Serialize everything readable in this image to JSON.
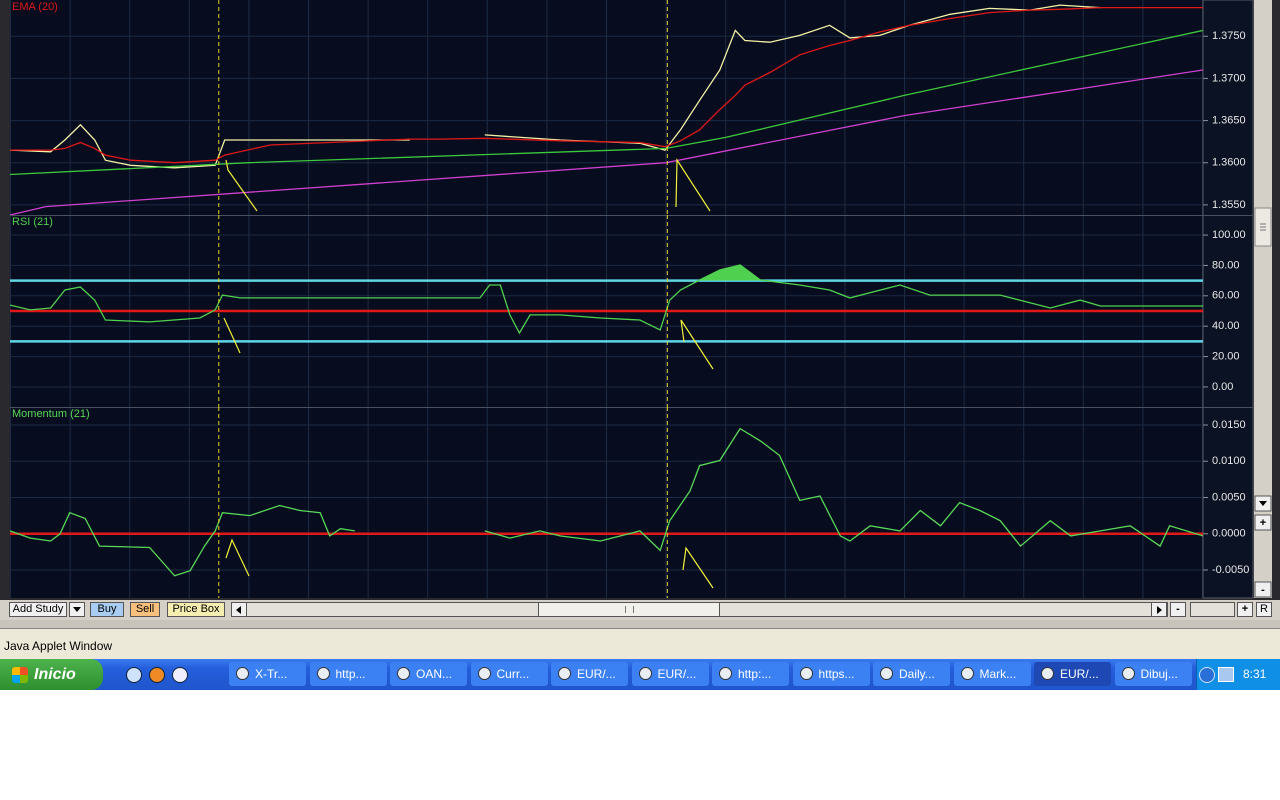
{
  "chart_data": [
    {
      "type": "line",
      "xlim": [
        0,
        100
      ],
      "ylim": [
        1.3538,
        1.3793
      ],
      "yticks": [
        {
          "value": 1.355,
          "label": "1.3550"
        },
        {
          "value": 1.36,
          "label": "1.3600"
        },
        {
          "value": 1.365,
          "label": "1.3650"
        },
        {
          "value": 1.37,
          "label": "1.3700"
        },
        {
          "value": 1.375,
          "label": "1.3750"
        }
      ],
      "grid": true,
      "x_markers": [
        17.5,
        55.1
      ],
      "series": [
        {
          "color": "#f4f1a6",
          "x": [
            0,
            3.4,
            4.6,
            5.9,
            7.1,
            8.0,
            10.1,
            13.8,
            17.2,
            18.0,
            21.8,
            33.5,
            36.0,
            39.8,
            46.1,
            52.8,
            54.9,
            56.2,
            57.8,
            59.5,
            60.8,
            61.6,
            63.7,
            66.2,
            68.7,
            70.4,
            72.9,
            75.4,
            78.8,
            82.1,
            85.5,
            88.0,
            91.4
          ],
          "values": [
            1.3615,
            1.3613,
            1.3627,
            1.3645,
            1.3627,
            1.3603,
            1.3597,
            1.3594,
            1.3597,
            1.3627,
            1.3627,
            1.3627,
            null,
            1.3633,
            1.3627,
            1.3623,
            1.3615,
            1.3639,
            1.3674,
            1.371,
            1.3757,
            1.3745,
            1.3743,
            1.3751,
            1.3763,
            1.3748,
            1.3751,
            1.3763,
            1.3776,
            1.3783,
            1.3781,
            1.3787,
            1.3784
          ]
        },
        {
          "name": "EMA (20)",
          "color": "#e01818",
          "x": [
            0,
            3.4,
            4.6,
            5.9,
            7.1,
            8.0,
            10.1,
            13.8,
            17.2,
            18.0,
            21.8,
            33.5,
            36.0,
            39.8,
            46.1,
            52.8,
            54.9,
            56.2,
            57.8,
            59.5,
            60.8,
            61.6,
            63.7,
            66.2,
            68.7,
            70.4,
            72.9,
            75.4,
            78.8,
            82.1,
            85.5,
            88.0,
            91.4,
            100
          ],
          "values": [
            1.3615,
            1.3615,
            1.3617,
            1.3624,
            1.3617,
            1.3609,
            1.3603,
            1.36,
            1.3603,
            1.3609,
            1.3621,
            1.3628,
            1.3628,
            1.3629,
            1.3626,
            1.3624,
            1.3619,
            1.3626,
            1.3639,
            1.3663,
            1.368,
            1.3692,
            1.3707,
            1.3728,
            1.3739,
            1.3745,
            1.3755,
            1.3763,
            1.3771,
            1.3778,
            1.3781,
            1.3782,
            1.3784,
            1.3784
          ]
        },
        {
          "color": "#3cc83c",
          "x": [
            0,
            20,
            55,
            60,
            75,
            100
          ],
          "values": [
            1.3586,
            1.36,
            1.3617,
            1.363,
            1.368,
            1.3757
          ]
        },
        {
          "color": "#d040d0",
          "x": [
            0,
            3,
            55,
            75,
            100
          ],
          "values": [
            1.3538,
            1.3548,
            1.36,
            1.3656,
            1.371
          ]
        }
      ]
    },
    {
      "type": "line",
      "title": "RSI (21)",
      "xlim": [
        0,
        100
      ],
      "ylim": [
        -13.2,
        113.2
      ],
      "yticks": [
        {
          "value": 0,
          "label": "0.00"
        },
        {
          "value": 20,
          "label": "20.00"
        },
        {
          "value": 40,
          "label": "40.00"
        },
        {
          "value": 60,
          "label": "60.00"
        },
        {
          "value": 80,
          "label": "80.00"
        },
        {
          "value": 100,
          "label": "100.00"
        }
      ],
      "grid": true,
      "x_markers": [
        17.5,
        55.1
      ],
      "reference_lines": [
        {
          "value": 70,
          "color": "#5fd6ea"
        },
        {
          "value": 50,
          "color": "#e01818"
        },
        {
          "value": 30,
          "color": "#5fd6ea"
        }
      ],
      "fill_above": 70,
      "series": [
        {
          "color": "#4fd14f",
          "x": [
            0,
            1.7,
            3.4,
            4.6,
            5.9,
            7.1,
            8.0,
            11.7,
            15.9,
            17.2,
            17.8,
            19.3,
            21.0,
            39.4,
            40.2,
            41.1,
            41.9,
            42.7,
            43.6,
            46.1,
            49.5,
            52.8,
            54.5,
            55.3,
            56.2,
            57.8,
            59.5,
            61.2,
            62.9,
            66.2,
            68.7,
            70.4,
            74.6,
            77.1,
            83.0,
            87.2,
            89.7,
            91.4,
            100
          ],
          "values": [
            53.9,
            50.7,
            52.0,
            63.8,
            65.8,
            57.2,
            44.1,
            42.8,
            45.4,
            50.7,
            60.5,
            58.6,
            58.6,
            58.6,
            67.1,
            67.1,
            47.4,
            35.5,
            47.4,
            47.4,
            45.4,
            44.1,
            37.5,
            57.2,
            63.8,
            70.4,
            77.0,
            80.3,
            70.4,
            67.1,
            63.8,
            58.6,
            67.1,
            60.5,
            60.5,
            52.0,
            57.2,
            53.3,
            53.3
          ]
        }
      ]
    },
    {
      "type": "line",
      "title": "Momentum (21)",
      "xlim": [
        0,
        100
      ],
      "ylim": [
        -0.00886,
        0.01748
      ],
      "yticks": [
        {
          "value": -0.005,
          "label": "-0.0050"
        },
        {
          "value": 0,
          "label": "0.0000"
        },
        {
          "value": 0.005,
          "label": "0.0050"
        },
        {
          "value": 0.01,
          "label": "0.0100"
        },
        {
          "value": 0.015,
          "label": "0.0150"
        }
      ],
      "grid": true,
      "x_markers": [
        17.5,
        55.1
      ],
      "reference_lines": [
        {
          "value": 0,
          "color": "#e01818"
        }
      ],
      "series": [
        {
          "color": "#58d858",
          "x": [
            0,
            1.7,
            3.4,
            4.2,
            5.0,
            6.3,
            7.5,
            11.7,
            13.8,
            15.1,
            16.3,
            17.2,
            17.8,
            20.1,
            22.6,
            24.3,
            26.0,
            26.8,
            27.7,
            28.9,
            34.4,
            39.8,
            41.9,
            44.4,
            46.1,
            49.5,
            52.8,
            54.5,
            55.3,
            57.0,
            57.8,
            59.5,
            61.2,
            62.9,
            64.5,
            66.2,
            67.9,
            69.6,
            70.4,
            72.1,
            74.6,
            76.3,
            78.0,
            79.6,
            81.3,
            83.0,
            84.7,
            87.2,
            88.9,
            91.4,
            93.9,
            96.4,
            97.2,
            100
          ],
          "values": [
            0.0004,
            -0.0006,
            -0.001,
            0,
            0.0029,
            0.0021,
            -0.0017,
            -0.0019,
            -0.0058,
            -0.0051,
            -0.0017,
            0.0004,
            0.0029,
            0.0025,
            0.0039,
            0.0032,
            0.0029,
            -0.0003,
            0.0007,
            0.0004,
            null,
            0.0004,
            -0.0006,
            0.0004,
            -0.0003,
            -0.001,
            0.0004,
            -0.0023,
            0.0018,
            0.0059,
            0.0094,
            0.0101,
            0.0145,
            0.0128,
            0.0108,
            0.0046,
            0.0052,
            -0.0003,
            -0.001,
            0.0011,
            0.0004,
            0.0032,
            0.0011,
            0.0043,
            0.0032,
            0.0018,
            -0.0017,
            0.0018,
            -0.0003,
            0.0004,
            0.0011,
            -0.0017,
            0.0011,
            -0.0003
          ]
        }
      ]
    }
  ],
  "side_controls": {
    "zoom_in": "+",
    "zoom_out": "-"
  },
  "toolbar": {
    "buttons": [
      "Add Study",
      "Buy",
      "Sell",
      "Price Box"
    ],
    "zoom_out": "-",
    "zoom_in": "+",
    "reset": "R"
  },
  "status_bar": "Java Applet Window",
  "taskbar": {
    "start": "Inicio",
    "items": [
      "X-Tr...",
      "http...",
      "OAN...",
      "Curr...",
      "EUR/...",
      "EUR/...",
      "http:...",
      "https...",
      "Daily...",
      "Mark...",
      "EUR/...",
      "Dibuj..."
    ],
    "clock": "8:31"
  }
}
